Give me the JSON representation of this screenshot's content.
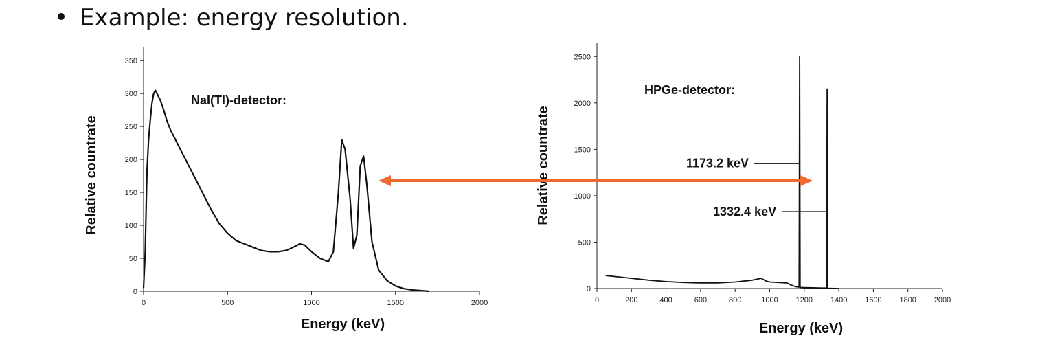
{
  "slide": {
    "bullet_text": "Example: energy resolution."
  },
  "arrow": {
    "color": "#ee6a30"
  },
  "chart_data": [
    {
      "type": "line",
      "title": "",
      "annotation": "NaI(Tl)-detector:",
      "xlabel": "Energy (keV)",
      "ylabel": "Relative countrate",
      "xlim": [
        0,
        2000
      ],
      "ylim": [
        0,
        370
      ],
      "xticks": [
        0,
        500,
        1000,
        1500,
        2000
      ],
      "yticks": [
        0,
        50,
        100,
        150,
        200,
        250,
        300,
        350
      ],
      "grid": false,
      "line_color": "#111111",
      "series": [
        {
          "x": [
            0,
            10,
            20,
            30,
            40,
            50,
            60,
            70,
            80,
            100,
            120,
            140,
            160,
            180,
            200,
            220,
            250,
            300,
            350,
            400,
            450,
            500,
            550,
            600,
            650,
            700,
            750,
            800,
            850,
            900,
            930,
            960,
            1000,
            1050,
            1100,
            1130,
            1160,
            1180,
            1200,
            1230,
            1250,
            1270,
            1290,
            1310,
            1330,
            1360,
            1400,
            1450,
            1500,
            1550,
            1600,
            1650,
            1700
          ],
          "y": [
            5,
            60,
            180,
            230,
            260,
            285,
            300,
            305,
            300,
            290,
            275,
            258,
            245,
            235,
            225,
            215,
            200,
            175,
            150,
            125,
            103,
            88,
            77,
            72,
            67,
            62,
            60,
            60,
            62,
            68,
            72,
            70,
            60,
            50,
            45,
            60,
            150,
            230,
            215,
            140,
            65,
            85,
            190,
            205,
            160,
            75,
            32,
            16,
            8,
            4,
            2,
            1,
            0
          ]
        }
      ]
    },
    {
      "type": "line",
      "title": "",
      "annotation": "HPGe-detector:",
      "xlabel": "Energy (keV)",
      "ylabel": "Relative countrate",
      "xlim": [
        0,
        2000
      ],
      "ylim": [
        0,
        2650
      ],
      "xticks": [
        0,
        200,
        400,
        600,
        800,
        1000,
        1200,
        1400,
        1600,
        1800,
        2000
      ],
      "yticks": [
        0,
        500,
        1000,
        1500,
        2000,
        2500
      ],
      "grid": false,
      "line_color": "#111111",
      "series": [
        {
          "x": [
            50,
            100,
            200,
            300,
            400,
            500,
            600,
            700,
            800,
            900,
            950,
            980,
            1000,
            1050,
            1100,
            1120,
            1150,
            1170,
            1173.2,
            1176,
            1200,
            1250,
            1300,
            1330,
            1332.4,
            1335,
            1400
          ],
          "y": [
            140,
            130,
            110,
            90,
            75,
            65,
            60,
            60,
            70,
            90,
            110,
            80,
            70,
            65,
            60,
            40,
            20,
            15,
            2500,
            12,
            10,
            8,
            5,
            5,
            2150,
            3,
            0
          ]
        }
      ],
      "peak_labels": [
        {
          "text": "1173.2 keV",
          "energy": 1173.2,
          "level": 1350
        },
        {
          "text": "1332.4 keV",
          "energy": 1332.4,
          "level": 830
        }
      ]
    }
  ]
}
